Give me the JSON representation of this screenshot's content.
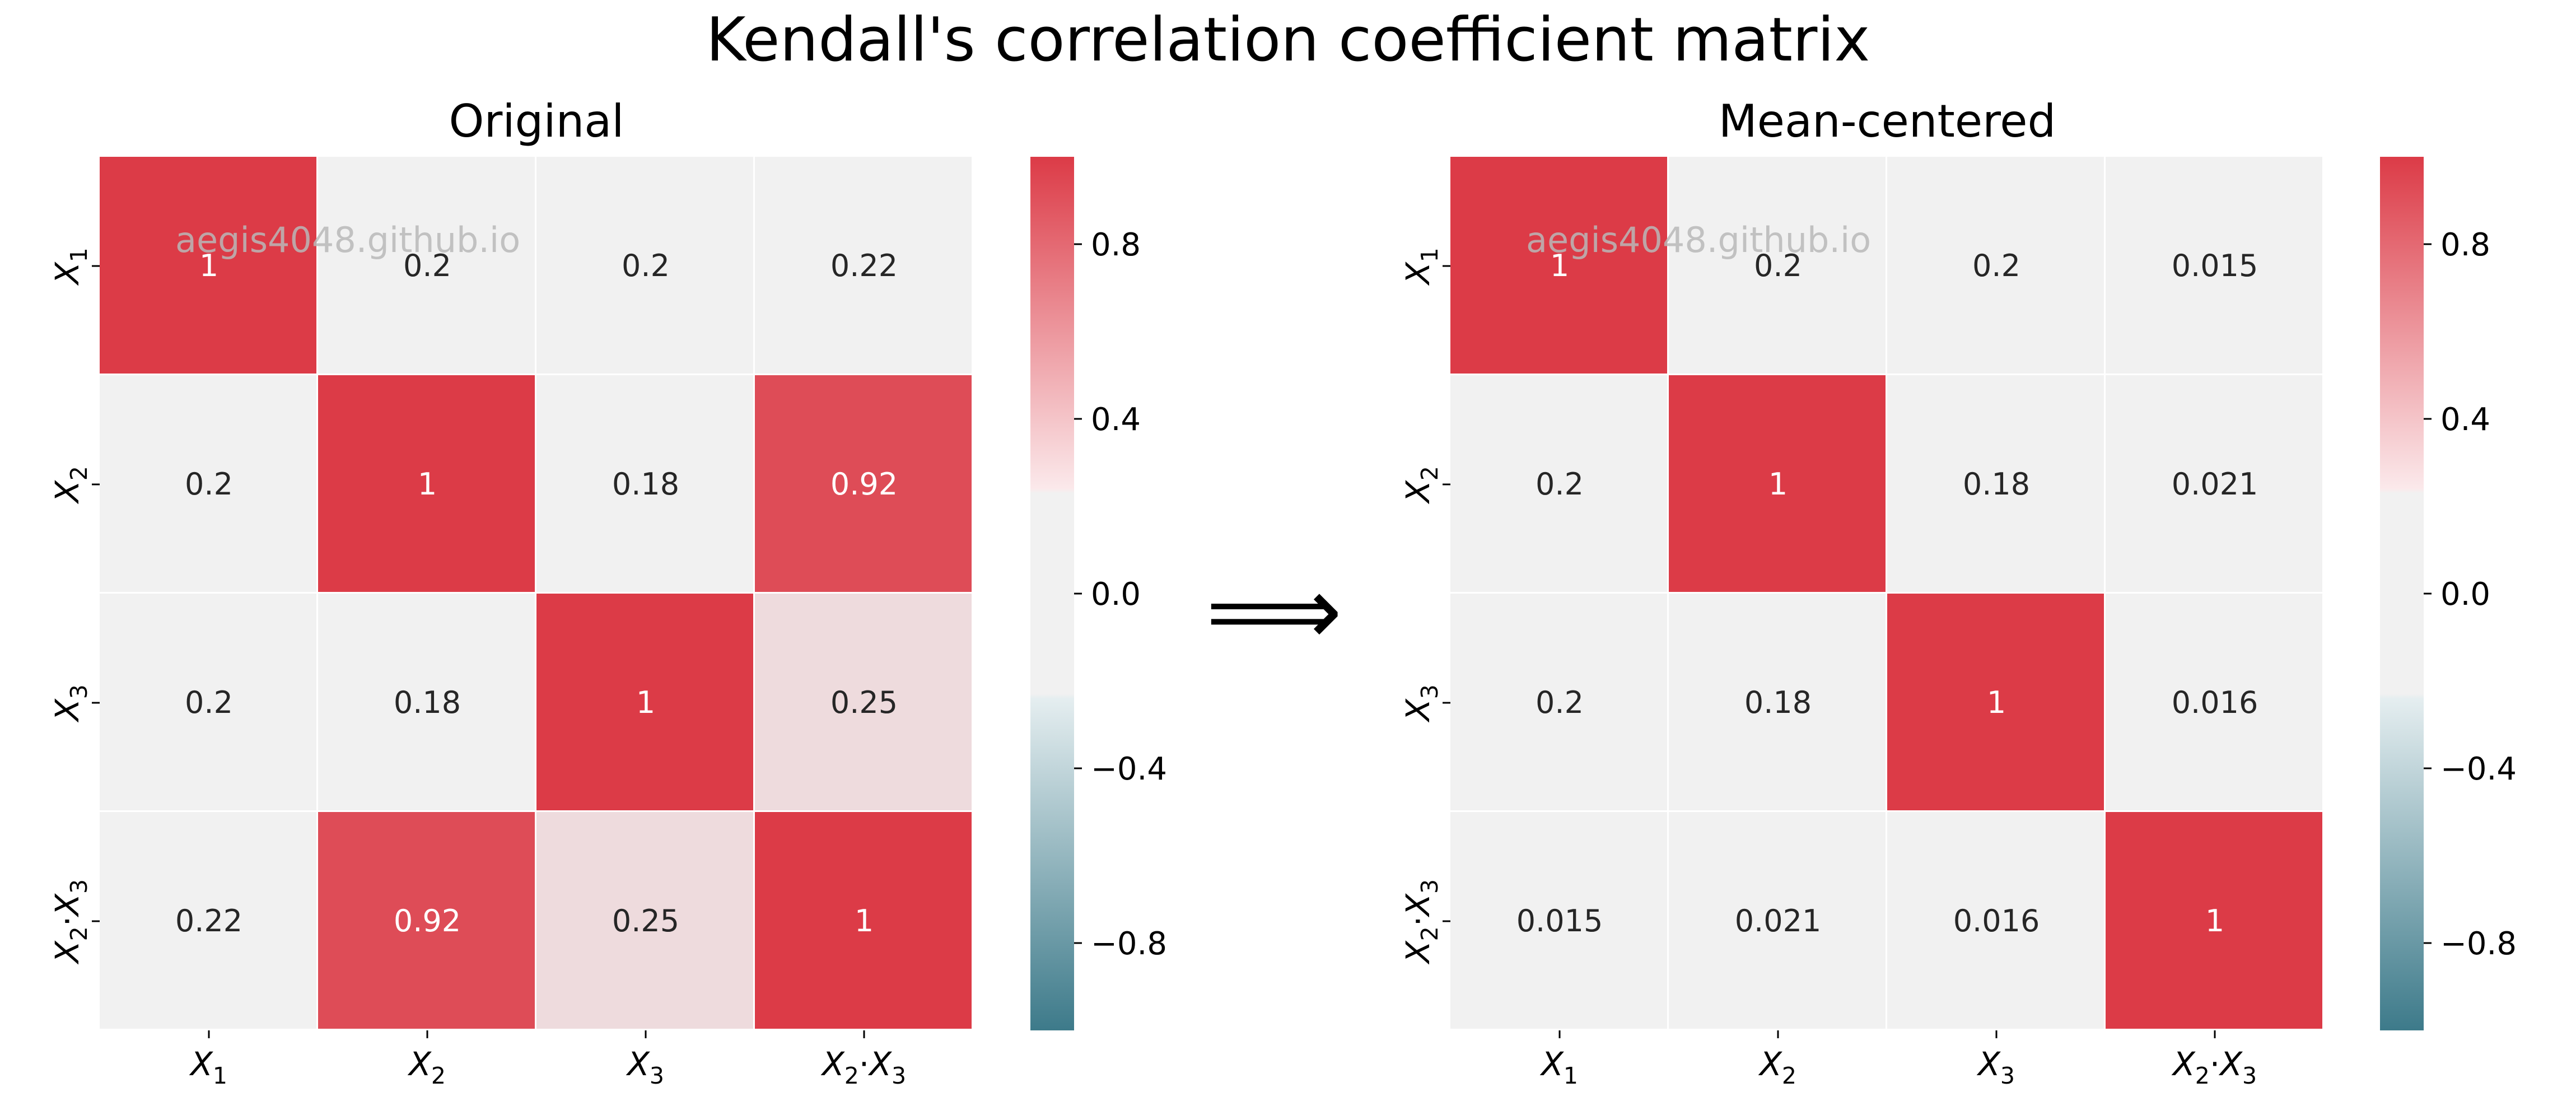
{
  "title": "Kendall's correlation coefficient matrix",
  "watermark": "aegis4048.github.io",
  "arrow_glyph": "⟹",
  "colors": {
    "positive": "#dc3b47",
    "neutral": "#f1f1f1",
    "negative": "#3d7a8a",
    "text_dark": "#262626",
    "text_light": "#ffffff",
    "watermark": "#b8b8b8"
  },
  "chart_data": [
    {
      "type": "heatmap",
      "title": "Original",
      "rows": [
        {
          "sub": [
            "X",
            "1"
          ],
          "op": ""
        },
        {
          "sub": [
            "X",
            "2"
          ],
          "op": ""
        },
        {
          "sub": [
            "X",
            "3"
          ],
          "op": ""
        },
        {
          "sub": [
            "X",
            "2"
          ],
          "op": "·",
          "sub2": [
            "X",
            "3"
          ]
        }
      ],
      "cols": [
        {
          "sub": [
            "X",
            "1"
          ],
          "op": ""
        },
        {
          "sub": [
            "X",
            "2"
          ],
          "op": ""
        },
        {
          "sub": [
            "X",
            "3"
          ],
          "op": ""
        },
        {
          "sub": [
            "X",
            "2"
          ],
          "op": "·",
          "sub2": [
            "X",
            "3"
          ]
        }
      ],
      "values": [
        [
          1,
          0.2,
          0.2,
          0.22
        ],
        [
          0.2,
          1,
          0.18,
          0.92
        ],
        [
          0.2,
          0.18,
          1,
          0.25
        ],
        [
          0.22,
          0.92,
          0.25,
          1
        ]
      ],
      "labels": [
        [
          "1",
          "0.2",
          "0.2",
          "0.22"
        ],
        [
          "0.2",
          "1",
          "0.18",
          "0.92"
        ],
        [
          "0.2",
          "0.18",
          "1",
          "0.25"
        ],
        [
          "0.22",
          "0.92",
          "0.25",
          "1"
        ]
      ],
      "vmin": -1,
      "vmax": 1,
      "colorbar_ticks": [
        0.8,
        0.4,
        0.0,
        -0.4,
        -0.8
      ],
      "colorbar_tick_labels": [
        "0.8",
        "0.4",
        "0.0",
        "−0.4",
        "−0.8"
      ]
    },
    {
      "type": "heatmap",
      "title": "Mean-centered",
      "rows": [
        {
          "sub": [
            "X",
            "1"
          ],
          "op": ""
        },
        {
          "sub": [
            "X",
            "2"
          ],
          "op": ""
        },
        {
          "sub": [
            "X",
            "3"
          ],
          "op": ""
        },
        {
          "sub": [
            "X",
            "2"
          ],
          "op": "·",
          "sub2": [
            "X",
            "3"
          ]
        }
      ],
      "cols": [
        {
          "sub": [
            "X",
            "1"
          ],
          "op": ""
        },
        {
          "sub": [
            "X",
            "2"
          ],
          "op": ""
        },
        {
          "sub": [
            "X",
            "3"
          ],
          "op": ""
        },
        {
          "sub": [
            "X",
            "2"
          ],
          "op": "·",
          "sub2": [
            "X",
            "3"
          ]
        }
      ],
      "values": [
        [
          1,
          0.2,
          0.2,
          0.015
        ],
        [
          0.2,
          1,
          0.18,
          0.021
        ],
        [
          0.2,
          0.18,
          1,
          0.016
        ],
        [
          0.015,
          0.021,
          0.016,
          1
        ]
      ],
      "labels": [
        [
          "1",
          "0.2",
          "0.2",
          "0.015"
        ],
        [
          "0.2",
          "1",
          "0.18",
          "0.021"
        ],
        [
          "0.2",
          "0.18",
          "1",
          "0.016"
        ],
        [
          "0.015",
          "0.021",
          "0.016",
          "1"
        ]
      ],
      "vmin": -1,
      "vmax": 1,
      "colorbar_ticks": [
        0.8,
        0.4,
        0.0,
        -0.4,
        -0.8
      ],
      "colorbar_tick_labels": [
        "0.8",
        "0.4",
        "0.0",
        "−0.4",
        "−0.8"
      ]
    }
  ]
}
